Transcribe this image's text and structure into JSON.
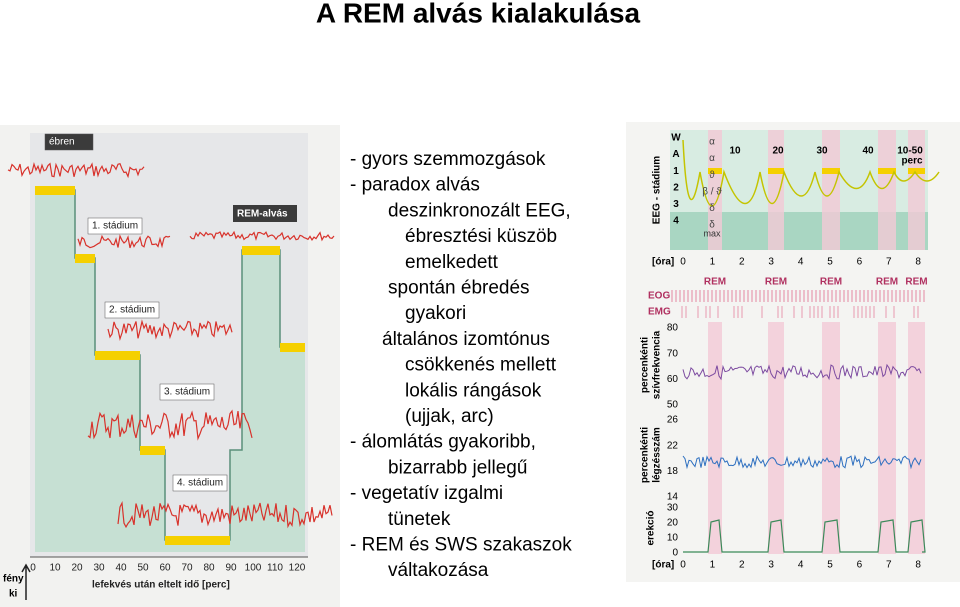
{
  "title": "A REM alvás kialakulása",
  "left_figure": {
    "stage_labels": [
      "ébren",
      "1. stádium",
      "2. stádium",
      "3. stádium",
      "4. stádium"
    ],
    "rem_label": "REM-alvás",
    "x_ticks": [
      0,
      10,
      20,
      30,
      40,
      50,
      60,
      70,
      80,
      90,
      100,
      110,
      120
    ],
    "x_axis_label": "lefekvés után eltelt idő [perc]",
    "lights_off": [
      "fény",
      "ki"
    ]
  },
  "text_lines": [
    "- gyors szemmozgások",
    "- paradox alvás",
    "deszinkronozált EEG,",
    "ébresztési küszöb",
    "emelkedett",
    "spontán ébredés",
    "gyakori",
    "általános izomtónus",
    "csökkenés mellett",
    "lokális rángások",
    "(ujjak, arc)",
    "- álomlátás  gyakoribb,",
    "bizarrabb jellegű",
    "- vegetatív izgalmi",
    "tünetek",
    "- REM és SWS szakaszok",
    "váltakozása"
  ],
  "right_figure": {
    "eeg_axis_label": "EEG - stádium",
    "stage_rows": [
      "W",
      "A",
      "1",
      "2",
      "3",
      "4"
    ],
    "wave_labels": [
      "α",
      "α",
      "ϑ",
      "β / ϑ",
      "δ",
      "δ"
    ],
    "max_label": "max",
    "cycle_labels": [
      10,
      20,
      30,
      40,
      "10-50"
    ],
    "perc": "perc",
    "hour_unit": "[óra]",
    "hours": [
      0,
      1,
      2,
      3,
      4,
      5,
      6,
      7,
      8
    ],
    "rem_labels": [
      "REM",
      "REM",
      "REM",
      "REM",
      "REM"
    ],
    "eog": "EOG",
    "emg": "EMG",
    "heart_rate_label": [
      "percenkénti",
      "szívfrekvencia"
    ],
    "heart_rate_ticks": [
      80,
      70,
      60,
      50
    ],
    "resp_label": [
      "percenkénti",
      "légzésszám"
    ],
    "resp_ticks": [
      26,
      22,
      18,
      14
    ],
    "erection_label": "erekció",
    "erection_ticks": [
      30,
      20,
      10,
      0
    ]
  }
}
